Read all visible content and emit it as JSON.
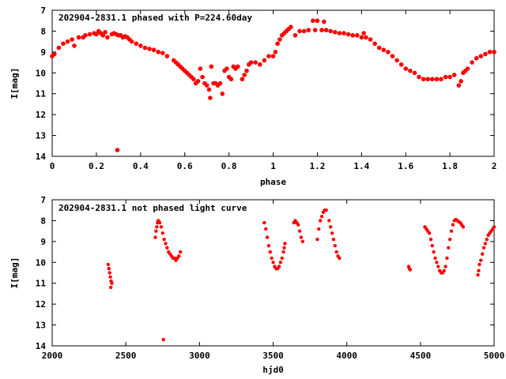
{
  "chart_data": [
    {
      "type": "scatter",
      "title": "202904-2831.1 phased with P=224.60day",
      "xlabel": "phase",
      "ylabel": "I[mag]",
      "xlim": [
        0,
        2
      ],
      "ylim": [
        7,
        14
      ],
      "y_inverted": true,
      "grid": false,
      "marker_color": "#ff0000",
      "xticks": [
        "0",
        "0.2",
        "0.4",
        "0.6",
        "0.8",
        "1",
        "1.2",
        "1.4",
        "1.6",
        "1.8",
        "2"
      ],
      "yticks": [
        "7",
        "8",
        "9",
        "10",
        "11",
        "12",
        "13",
        "14"
      ],
      "series": [
        {
          "points": [
            [
              0.0,
              9.2
            ],
            [
              0.01,
              9.1
            ],
            [
              0.03,
              8.8
            ],
            [
              0.05,
              8.6
            ],
            [
              0.07,
              8.5
            ],
            [
              0.09,
              8.4
            ],
            [
              0.1,
              8.7
            ],
            [
              0.12,
              8.3
            ],
            [
              0.14,
              8.3
            ],
            [
              0.15,
              8.2
            ],
            [
              0.17,
              8.15
            ],
            [
              0.19,
              8.1
            ],
            [
              0.2,
              8.15
            ],
            [
              0.21,
              8.0
            ],
            [
              0.22,
              8.1
            ],
            [
              0.23,
              8.2
            ],
            [
              0.24,
              8.05
            ],
            [
              0.25,
              8.3
            ],
            [
              0.27,
              8.15
            ],
            [
              0.28,
              8.1
            ],
            [
              0.29,
              8.15
            ],
            [
              0.3,
              8.2
            ],
            [
              0.31,
              8.2
            ],
            [
              0.32,
              8.3
            ],
            [
              0.33,
              8.25
            ],
            [
              0.34,
              8.3
            ],
            [
              0.35,
              8.4
            ],
            [
              0.36,
              8.5
            ],
            [
              0.38,
              8.6
            ],
            [
              0.4,
              8.7
            ],
            [
              0.42,
              8.8
            ],
            [
              0.44,
              8.85
            ],
            [
              0.46,
              8.9
            ],
            [
              0.48,
              9.0
            ],
            [
              0.5,
              9.05
            ],
            [
              0.52,
              9.2
            ],
            [
              0.55,
              9.4
            ],
            [
              0.56,
              9.5
            ],
            [
              0.57,
              9.6
            ],
            [
              0.58,
              9.7
            ],
            [
              0.59,
              9.8
            ],
            [
              0.6,
              9.9
            ],
            [
              0.61,
              10.0
            ],
            [
              0.62,
              10.1
            ],
            [
              0.63,
              10.2
            ],
            [
              0.64,
              10.3
            ],
            [
              0.65,
              10.5
            ],
            [
              0.66,
              10.4
            ],
            [
              0.67,
              9.8
            ],
            [
              0.68,
              10.2
            ],
            [
              0.69,
              10.5
            ],
            [
              0.7,
              10.6
            ],
            [
              0.71,
              10.8
            ],
            [
              0.715,
              11.2
            ],
            [
              0.72,
              9.7
            ],
            [
              0.73,
              10.5
            ],
            [
              0.74,
              10.5
            ],
            [
              0.75,
              10.6
            ],
            [
              0.76,
              10.5
            ],
            [
              0.77,
              11.0
            ],
            [
              0.78,
              9.9
            ],
            [
              0.79,
              9.8
            ],
            [
              0.8,
              10.2
            ],
            [
              0.81,
              10.3
            ],
            [
              0.82,
              9.7
            ],
            [
              0.83,
              9.8
            ],
            [
              0.84,
              9.7
            ],
            [
              0.86,
              10.3
            ],
            [
              0.87,
              10.1
            ],
            [
              0.88,
              9.9
            ],
            [
              0.89,
              9.6
            ],
            [
              0.9,
              9.5
            ],
            [
              0.92,
              9.5
            ],
            [
              0.94,
              9.6
            ],
            [
              0.96,
              9.4
            ],
            [
              0.98,
              9.2
            ],
            [
              1.0,
              9.2
            ],
            [
              1.01,
              9.0
            ],
            [
              1.02,
              8.6
            ],
            [
              1.03,
              8.4
            ],
            [
              1.04,
              8.2
            ],
            [
              1.05,
              8.1
            ],
            [
              1.06,
              8.0
            ],
            [
              1.07,
              7.9
            ],
            [
              1.08,
              7.8
            ],
            [
              1.1,
              8.2
            ],
            [
              1.12,
              8.0
            ],
            [
              1.14,
              8.0
            ],
            [
              1.16,
              7.95
            ],
            [
              1.18,
              7.5
            ],
            [
              1.19,
              7.95
            ],
            [
              1.2,
              7.5
            ],
            [
              1.22,
              7.95
            ],
            [
              1.23,
              7.55
            ],
            [
              1.24,
              7.95
            ],
            [
              1.26,
              8.0
            ],
            [
              1.28,
              8.05
            ],
            [
              1.3,
              8.1
            ],
            [
              1.32,
              8.1
            ],
            [
              1.34,
              8.15
            ],
            [
              1.36,
              8.2
            ],
            [
              1.38,
              8.2
            ],
            [
              1.4,
              8.3
            ],
            [
              1.41,
              8.1
            ],
            [
              1.42,
              8.3
            ],
            [
              1.44,
              8.4
            ],
            [
              1.46,
              8.6
            ],
            [
              1.48,
              8.8
            ],
            [
              1.5,
              8.9
            ],
            [
              1.52,
              9.0
            ],
            [
              1.54,
              9.2
            ],
            [
              1.56,
              9.4
            ],
            [
              1.58,
              9.6
            ],
            [
              1.6,
              9.8
            ],
            [
              1.62,
              9.9
            ],
            [
              1.64,
              10.0
            ],
            [
              1.66,
              10.2
            ],
            [
              1.68,
              10.3
            ],
            [
              1.7,
              10.3
            ],
            [
              1.72,
              10.3
            ],
            [
              1.74,
              10.3
            ],
            [
              1.76,
              10.3
            ],
            [
              1.78,
              10.2
            ],
            [
              1.8,
              10.2
            ],
            [
              1.82,
              10.1
            ],
            [
              1.84,
              10.6
            ],
            [
              1.85,
              10.4
            ],
            [
              1.86,
              10.0
            ],
            [
              1.87,
              9.9
            ],
            [
              1.88,
              9.8
            ],
            [
              1.9,
              9.5
            ],
            [
              1.92,
              9.3
            ],
            [
              1.94,
              9.2
            ],
            [
              1.96,
              9.1
            ],
            [
              1.98,
              9.0
            ],
            [
              2.0,
              9.0
            ],
            [
              0.295,
              13.7
            ]
          ]
        }
      ]
    },
    {
      "type": "scatter",
      "title": "202904-2831.1 not phased light curve",
      "xlabel": "hjd0",
      "ylabel": "I[mag]",
      "xlim": [
        2000,
        5000
      ],
      "ylim": [
        7,
        14
      ],
      "y_inverted": true,
      "grid": false,
      "marker_color": "#ff0000",
      "xticks": [
        "2000",
        "2500",
        "3000",
        "3500",
        "4000",
        "4500",
        "5000"
      ],
      "yticks": [
        "7",
        "8",
        "9",
        "10",
        "11",
        "12",
        "13",
        "14"
      ],
      "series": [
        {
          "points": [
            [
              2380,
              10.1
            ],
            [
              2385,
              10.3
            ],
            [
              2390,
              10.5
            ],
            [
              2395,
              10.7
            ],
            [
              2400,
              10.9
            ],
            [
              2405,
              11.0
            ],
            [
              2398,
              11.2
            ],
            [
              2700,
              8.8
            ],
            [
              2705,
              8.5
            ],
            [
              2710,
              8.3
            ],
            [
              2715,
              8.1
            ],
            [
              2720,
              8.0
            ],
            [
              2725,
              8.05
            ],
            [
              2730,
              8.1
            ],
            [
              2740,
              8.3
            ],
            [
              2750,
              8.6
            ],
            [
              2755,
              13.7
            ],
            [
              2760,
              8.9
            ],
            [
              2770,
              9.1
            ],
            [
              2780,
              9.3
            ],
            [
              2790,
              9.5
            ],
            [
              2800,
              9.6
            ],
            [
              2810,
              9.7
            ],
            [
              2820,
              9.8
            ],
            [
              2830,
              9.8
            ],
            [
              2840,
              9.9
            ],
            [
              2850,
              9.8
            ],
            [
              2860,
              9.7
            ],
            [
              2870,
              9.5
            ],
            [
              3440,
              8.1
            ],
            [
              3450,
              8.4
            ],
            [
              3460,
              8.8
            ],
            [
              3470,
              9.2
            ],
            [
              3480,
              9.5
            ],
            [
              3490,
              9.8
            ],
            [
              3500,
              10.0
            ],
            [
              3510,
              10.2
            ],
            [
              3520,
              10.3
            ],
            [
              3530,
              10.3
            ],
            [
              3540,
              10.2
            ],
            [
              3550,
              10.0
            ],
            [
              3560,
              9.8
            ],
            [
              3570,
              9.5
            ],
            [
              3575,
              9.3
            ],
            [
              3580,
              9.1
            ],
            [
              3640,
              8.1
            ],
            [
              3650,
              8.0
            ],
            [
              3660,
              8.1
            ],
            [
              3670,
              8.2
            ],
            [
              3680,
              8.5
            ],
            [
              3690,
              8.8
            ],
            [
              3700,
              9.0
            ],
            [
              3800,
              8.9
            ],
            [
              3810,
              8.4
            ],
            [
              3820,
              8.0
            ],
            [
              3830,
              7.8
            ],
            [
              3840,
              7.6
            ],
            [
              3850,
              7.5
            ],
            [
              3860,
              7.5
            ],
            [
              3880,
              8.0
            ],
            [
              3890,
              8.3
            ],
            [
              3900,
              8.6
            ],
            [
              3910,
              8.9
            ],
            [
              3920,
              9.2
            ],
            [
              3930,
              9.5
            ],
            [
              3940,
              9.7
            ],
            [
              3950,
              9.8
            ],
            [
              4420,
              10.2
            ],
            [
              4425,
              10.3
            ],
            [
              4430,
              10.35
            ],
            [
              4530,
              8.3
            ],
            [
              4540,
              8.4
            ],
            [
              4550,
              8.5
            ],
            [
              4560,
              8.6
            ],
            [
              4570,
              8.9
            ],
            [
              4580,
              9.2
            ],
            [
              4590,
              9.5
            ],
            [
              4600,
              9.8
            ],
            [
              4610,
              10.0
            ],
            [
              4620,
              10.2
            ],
            [
              4630,
              10.4
            ],
            [
              4640,
              10.5
            ],
            [
              4650,
              10.5
            ],
            [
              4660,
              10.4
            ],
            [
              4670,
              10.2
            ],
            [
              4680,
              9.8
            ],
            [
              4690,
              9.3
            ],
            [
              4700,
              8.9
            ],
            [
              4710,
              8.5
            ],
            [
              4720,
              8.2
            ],
            [
              4730,
              8.0
            ],
            [
              4740,
              7.95
            ],
            [
              4750,
              8.0
            ],
            [
              4760,
              8.05
            ],
            [
              4770,
              8.1
            ],
            [
              4780,
              8.2
            ],
            [
              4790,
              8.3
            ],
            [
              4890,
              10.6
            ],
            [
              4895,
              10.4
            ],
            [
              4900,
              10.1
            ],
            [
              4910,
              9.9
            ],
            [
              4920,
              9.6
            ],
            [
              4930,
              9.3
            ],
            [
              4940,
              9.1
            ],
            [
              4950,
              8.9
            ],
            [
              4960,
              8.7
            ],
            [
              4970,
              8.6
            ],
            [
              4980,
              8.5
            ],
            [
              4990,
              8.4
            ],
            [
              5000,
              8.3
            ]
          ]
        }
      ]
    }
  ]
}
